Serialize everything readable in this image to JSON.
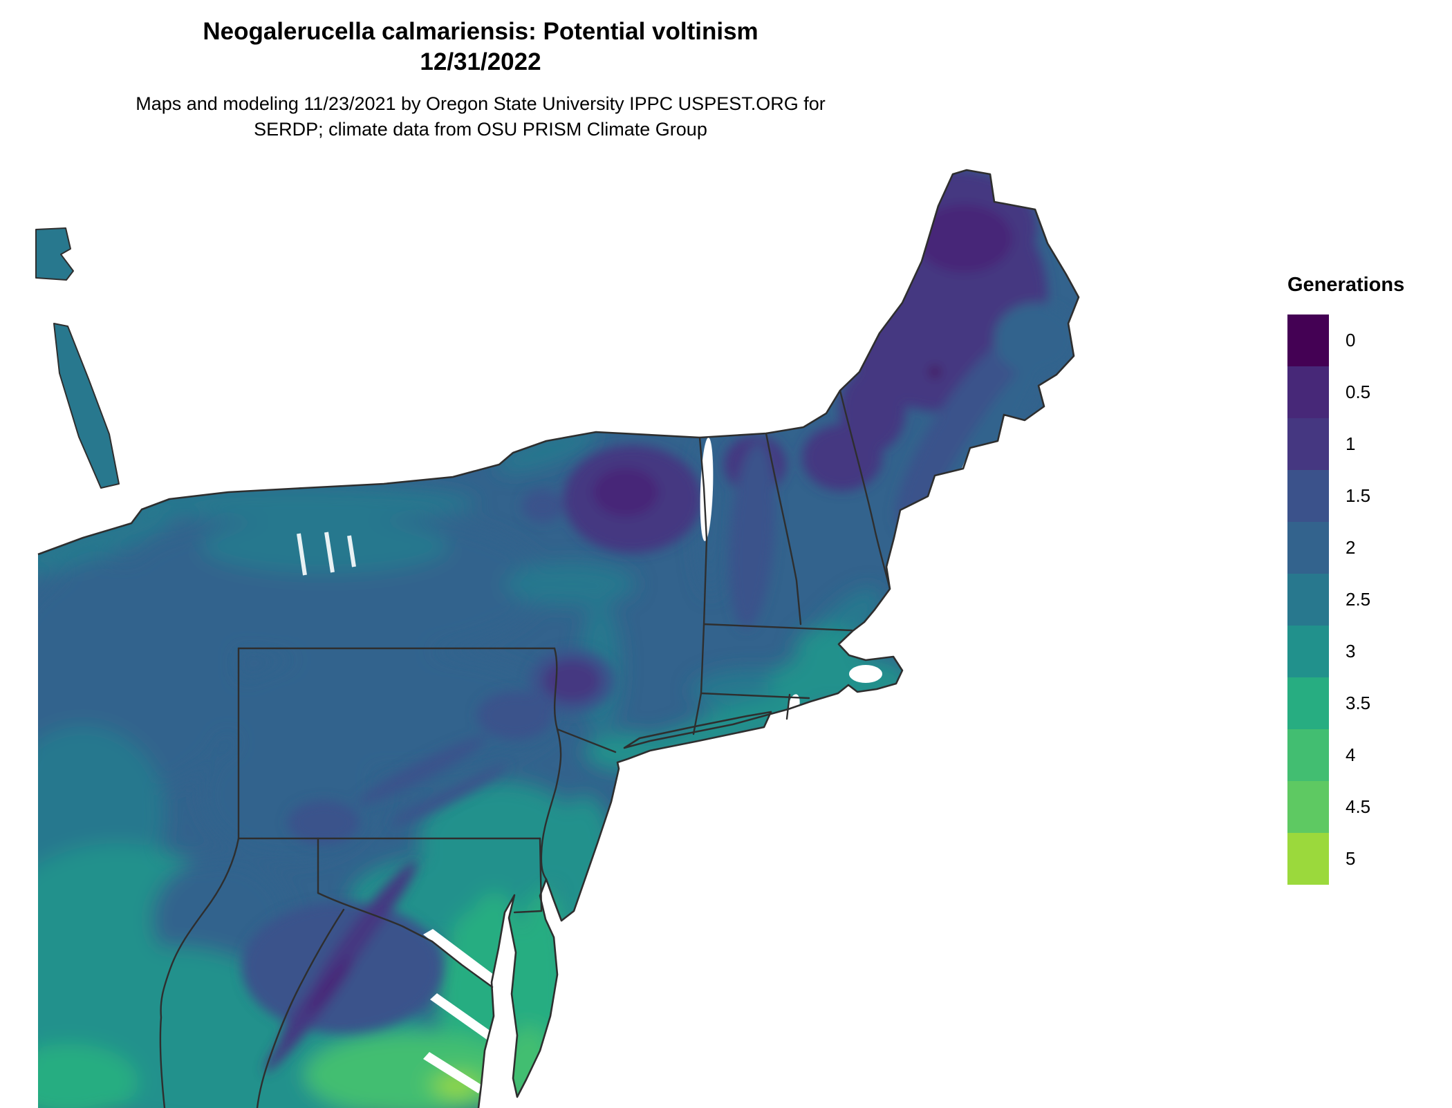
{
  "header": {
    "title_line1": "Neogalerucella calmariensis: Potential voltinism",
    "title_line2": "12/31/2022",
    "caption_line1": "Maps and modeling 11/23/2021 by Oregon State University IPPC USPEST.ORG for",
    "caption_line2": "SERDP; climate data from OSU PRISM Climate Group"
  },
  "legend": {
    "title": "Generations",
    "entries": [
      {
        "label": "0",
        "color": "#440154"
      },
      {
        "label": "0.5",
        "color": "#472878"
      },
      {
        "label": "1",
        "color": "#453781"
      },
      {
        "label": "1.5",
        "color": "#3b528b"
      },
      {
        "label": "2",
        "color": "#33638d"
      },
      {
        "label": "2.5",
        "color": "#28788e"
      },
      {
        "label": "3",
        "color": "#21918c"
      },
      {
        "label": "3.5",
        "color": "#27ad81"
      },
      {
        "label": "4",
        "color": "#42be71"
      },
      {
        "label": "4.5",
        "color": "#5ec962"
      },
      {
        "label": "5",
        "color": "#9bd93c"
      }
    ]
  },
  "map": {
    "description": "Northeastern United States raster map of potential voltinism (generations)",
    "border_color": "#2e2e2e",
    "water_color": "#ffffff",
    "regions": {
      "base-land": "2",
      "ontario-fragment": "2.5",
      "niagara-peninsula": "2.5",
      "ohio-north": "2",
      "ohio-central": "2.5",
      "ohio-south": "3",
      "lake-erie-shore": "2.5",
      "western-new-york": "2",
      "finger-lakes-region": "2.5",
      "lake-ontario-shore": "2.5",
      "st-lawrence-valley": "2.5",
      "mohawk-valley": "2.5",
      "hudson-valley": "2.5",
      "nyc-area": "3",
      "northern-pennsylvania": "2",
      "southwest-pennsylvania": "2",
      "west-virginia": "2",
      "southeast-pennsylvania": "3",
      "new-jersey": "3",
      "maryland-piedmont": "3",
      "virginia-west": "3",
      "virginia-piedmont": "3",
      "bottom-left-valley": "3.5",
      "coastal-plain-west": "3.5",
      "southern-maryland": "3.5",
      "delmarva": "3.5",
      "delmarva-south": "4",
      "southeast-virginia": "4",
      "norfolk": "4.5",
      "norfolk-core": "5",
      "champlain-valley": "2",
      "connecticut-interior": "2.5",
      "new-england-coast": "2.5",
      "boston-area": "3",
      "southeast-massachusetts": "3",
      "rhode-island-coast": "3",
      "long-island": "3",
      "maine-interior": "1",
      "maine-north": "1",
      "maine-north-core": "0.5",
      "maine-dark-spot": "0",
      "maine-coast-fringe": "1.5",
      "maine-coast-outer": "2",
      "downeast-maine": "2",
      "white-mountains": "1",
      "nh-me-border-mountains": "1",
      "vermont-north": "1",
      "vermont-green-mountains": "1.5",
      "adirondacks": "1",
      "adirondacks-core": "0.5",
      "tug-hill": "1.5",
      "catskills-rim": "1.5",
      "catskills": "1",
      "pocono-mountains": "1.5",
      "pa-ridge-1": "1.5",
      "pa-ridge-2": "1.5",
      "laurel-highlands": "1.5",
      "allegheny-wash": "1.5",
      "allegheny-ridge-1": "1",
      "allegheny-ridge-2": "1",
      "allegheny-ridge-3": "1",
      "allegheny-ridge-core": "0.5"
    }
  }
}
